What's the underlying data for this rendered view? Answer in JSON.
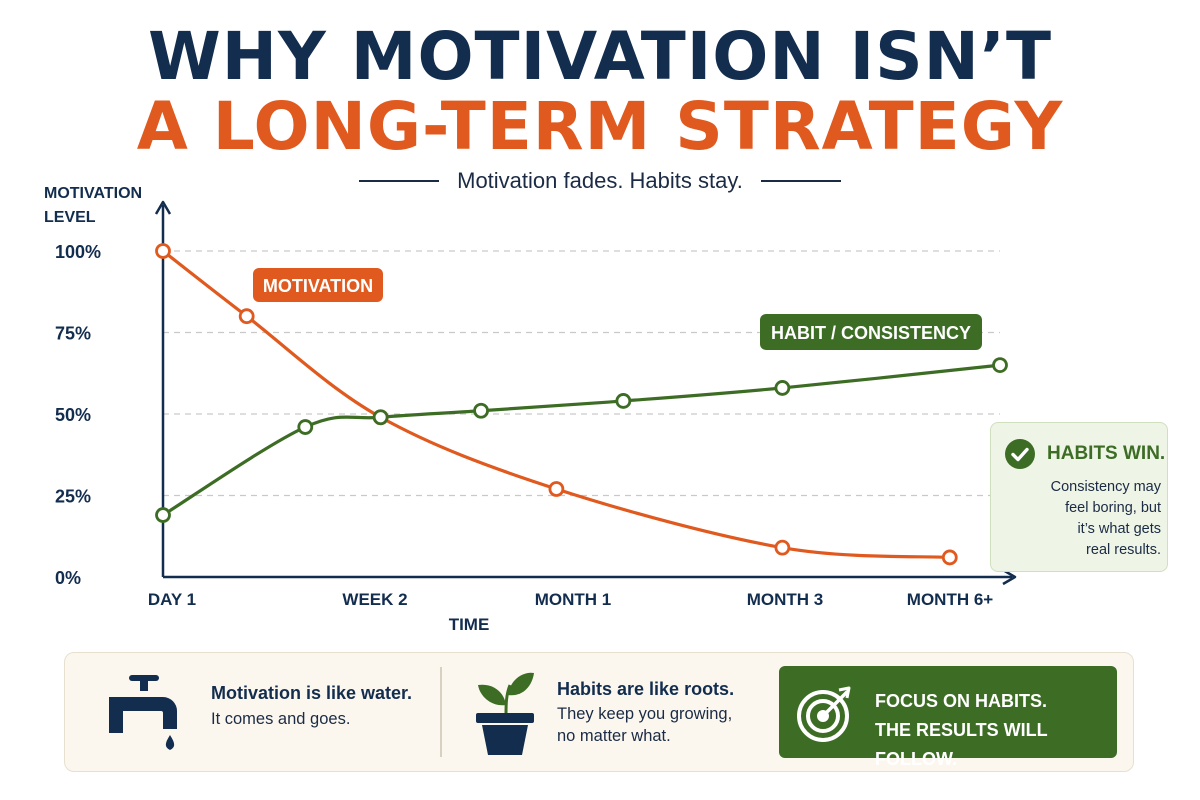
{
  "title_line1": "WHY MOTIVATION ISN’T",
  "title_line2": "A LONG-TERM STRATEGY",
  "subtitle": "Motivation fades. Habits stay.",
  "colors": {
    "navy": "#132d4f",
    "orange": "#e05a1f",
    "green": "#3d6d25",
    "grid": "#c9c9c9"
  },
  "chart_data": {
    "type": "line",
    "ylabel": [
      "MOTIVATION",
      "LEVEL"
    ],
    "xlabel": "TIME",
    "yticks": [
      "0%",
      "25%",
      "50%",
      "75%",
      "100%"
    ],
    "ylim": [
      0,
      100
    ],
    "xticks": [
      "DAY 1",
      "WEEK 2",
      "MONTH 1",
      "MONTH 3",
      "MONTH 6+"
    ],
    "grid": "horizontal dashed",
    "series": [
      {
        "name": "MOTIVATION",
        "color": "#e05a1f",
        "points": [
          {
            "x": 0,
            "y": 100
          },
          {
            "x": 0.1,
            "y": 80
          },
          {
            "x": 0.26,
            "y": 49
          },
          {
            "x": 0.47,
            "y": 27
          },
          {
            "x": 0.74,
            "y": 9
          },
          {
            "x": 0.94,
            "y": 6
          }
        ]
      },
      {
        "name": "HABIT / CONSISTENCY",
        "color": "#3d6d25",
        "points": [
          {
            "x": 0,
            "y": 19
          },
          {
            "x": 0.17,
            "y": 46
          },
          {
            "x": 0.26,
            "y": 49
          },
          {
            "x": 0.38,
            "y": 51
          },
          {
            "x": 0.55,
            "y": 54
          },
          {
            "x": 0.74,
            "y": 58
          },
          {
            "x": 1.0,
            "y": 65
          }
        ]
      }
    ]
  },
  "callout": {
    "title": "HABITS WIN.",
    "lines": [
      "Consistency may",
      "feel boring, but",
      "it’s what gets",
      "real results."
    ]
  },
  "bottom": {
    "water_title": "Motivation is like water.",
    "water_text": "It comes and goes.",
    "roots_title": "Habits are like roots.",
    "roots_text": [
      "They keep you growing,",
      "no matter what."
    ],
    "focus": [
      "FOCUS ON HABITS.",
      "THE RESULTS WILL FOLLOW."
    ],
    "icons": [
      "faucet-icon",
      "plant-icon",
      "target-icon",
      "check-icon"
    ]
  }
}
